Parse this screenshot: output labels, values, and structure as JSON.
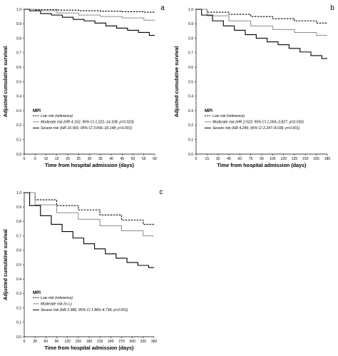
{
  "figure": {
    "panels": [
      {
        "letter": "a"
      },
      {
        "letter": "b"
      },
      {
        "letter": "c"
      }
    ]
  },
  "chart_data": [
    {
      "type": "line",
      "panel": "a",
      "xlabel": "Time from hospital admission (days)",
      "ylabel": "Adjusted cumulative survival",
      "xlim": [
        0,
        60
      ],
      "ylim": [
        0,
        1.0
      ],
      "x_ticks": [
        "0",
        "5",
        "10",
        "15",
        "20",
        "25",
        "30",
        "35",
        "40",
        "45",
        "50",
        "55",
        "60"
      ],
      "y_ticks": [
        "0.0",
        "0.1",
        "0.2",
        "0.3",
        "0.4",
        "0.5",
        "0.6",
        "0.7",
        "0.8",
        "0.9",
        "1.0"
      ],
      "grid": false,
      "legend": {
        "title": "MPI",
        "placement": "bottom-left",
        "entries": [
          {
            "style": "dashed",
            "text": "Low risk (reference)"
          },
          {
            "style": "solid-gray",
            "text": "Moderate risk (HR 4.152; 95% CI 1.222–14.108; p=0.023)"
          },
          {
            "style": "solid-black",
            "text": "Severe risk (HR 10.065; 95% CI 3.056–33.148; p<0.001)"
          }
        ]
      },
      "series": [
        {
          "name": "Low risk (reference)",
          "color": "#000000",
          "dash": true,
          "x": [
            0,
            10,
            20,
            30,
            40,
            50,
            60
          ],
          "y": [
            1.0,
            0.997,
            0.994,
            0.99,
            0.987,
            0.983,
            0.98
          ]
        },
        {
          "name": "Moderate risk",
          "color": "#8c8c8c",
          "dash": false,
          "x": [
            0,
            10,
            20,
            30,
            40,
            50,
            60
          ],
          "y": [
            1.0,
            0.99,
            0.975,
            0.96,
            0.95,
            0.94,
            0.925
          ]
        },
        {
          "name": "Severe risk",
          "color": "#000000",
          "dash": false,
          "x": [
            0,
            5,
            10,
            15,
            20,
            25,
            30,
            35,
            40,
            45,
            50,
            55,
            60
          ],
          "y": [
            1.0,
            0.99,
            0.97,
            0.96,
            0.945,
            0.93,
            0.92,
            0.905,
            0.885,
            0.87,
            0.855,
            0.84,
            0.82
          ]
        }
      ]
    },
    {
      "type": "line",
      "panel": "b",
      "xlabel": "Time from hospital admission (days)",
      "ylabel": "Adjusted cumulative survival",
      "xlim": [
        0,
        180
      ],
      "ylim": [
        0,
        1.0
      ],
      "x_ticks": [
        "0",
        "15",
        "30",
        "45",
        "60",
        "75",
        "90",
        "105",
        "120",
        "135",
        "150",
        "165",
        "180"
      ],
      "y_ticks": [
        "0.0",
        "0.1",
        "0.2",
        "0.3",
        "0.4",
        "0.5",
        "0.6",
        "0.7",
        "0.8",
        "0.9",
        "1.0"
      ],
      "grid": false,
      "legend": {
        "title": "MPI",
        "placement": "bottom-left",
        "entries": [
          {
            "style": "dashed",
            "text": "Low risk (reference)"
          },
          {
            "style": "solid-gray",
            "text": "Moderate risk (HR 2.023; 95% CI 1.069–3.827; p=0.030)"
          },
          {
            "style": "solid-black",
            "text": "Severe risk (HR 4.249; 95% CI 2.247–8.036; p<0.001)"
          }
        ]
      },
      "series": [
        {
          "name": "Low risk (reference)",
          "color": "#000000",
          "dash": true,
          "x": [
            0,
            30,
            60,
            90,
            120,
            150,
            180
          ],
          "y": [
            1.0,
            0.98,
            0.965,
            0.95,
            0.935,
            0.92,
            0.905
          ]
        },
        {
          "name": "Moderate risk",
          "color": "#8c8c8c",
          "dash": false,
          "x": [
            0,
            30,
            60,
            90,
            120,
            150,
            180
          ],
          "y": [
            1.0,
            0.955,
            0.92,
            0.885,
            0.86,
            0.84,
            0.82
          ]
        },
        {
          "name": "Severe risk",
          "color": "#000000",
          "dash": false,
          "x": [
            0,
            15,
            30,
            45,
            60,
            75,
            90,
            105,
            120,
            135,
            150,
            165,
            180
          ],
          "y": [
            1.0,
            0.96,
            0.92,
            0.885,
            0.855,
            0.825,
            0.8,
            0.775,
            0.755,
            0.73,
            0.705,
            0.68,
            0.66
          ]
        }
      ]
    },
    {
      "type": "line",
      "panel": "c",
      "xlabel": "Time from hospital admission (days)",
      "ylabel": "Adjusted cumulative survival",
      "xlim": [
        0,
        360
      ],
      "ylim": [
        0,
        1.0
      ],
      "x_ticks": [
        "0",
        "30",
        "60",
        "90",
        "120",
        "150",
        "180",
        "210",
        "240",
        "270",
        "300",
        "330",
        "360"
      ],
      "y_ticks": [
        "0.0",
        "0.1",
        "0.2",
        "0.3",
        "0.4",
        "0.5",
        "0.6",
        "0.7",
        "0.8",
        "0.9",
        "1.0"
      ],
      "grid": false,
      "legend": {
        "title": "MPI",
        "placement": "bottom-left",
        "entries": [
          {
            "style": "dashed",
            "text": "Low risk (reference)"
          },
          {
            "style": "solid-gray",
            "text": "Moderate risk (n.s.)"
          },
          {
            "style": "solid-black",
            "text": "Severe risk (HR 2.986; 95% CI 1.883–4.734; p<0.001)"
          }
        ]
      },
      "series": [
        {
          "name": "Low risk (reference)",
          "color": "#000000",
          "dash": true,
          "x": [
            0,
            60,
            120,
            180,
            240,
            300,
            360
          ],
          "y": [
            1.0,
            0.95,
            0.91,
            0.88,
            0.845,
            0.81,
            0.78
          ]
        },
        {
          "name": "Moderate risk",
          "color": "#8c8c8c",
          "dash": false,
          "x": [
            0,
            60,
            120,
            180,
            240,
            300,
            360
          ],
          "y": [
            1.0,
            0.915,
            0.86,
            0.815,
            0.77,
            0.735,
            0.7
          ]
        },
        {
          "name": "Severe risk",
          "color": "#000000",
          "dash": false,
          "x": [
            0,
            30,
            60,
            90,
            120,
            150,
            180,
            210,
            240,
            270,
            300,
            330,
            360
          ],
          "y": [
            1.0,
            0.91,
            0.84,
            0.78,
            0.73,
            0.685,
            0.645,
            0.61,
            0.575,
            0.545,
            0.515,
            0.495,
            0.48
          ]
        }
      ]
    }
  ]
}
